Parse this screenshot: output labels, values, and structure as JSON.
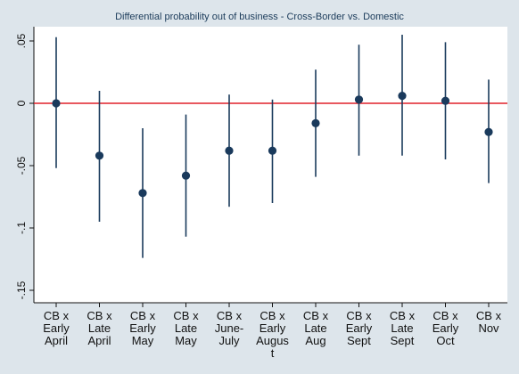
{
  "chart_data": {
    "type": "scatter",
    "subtype": "coefficient_plot_with_confidence_intervals",
    "title": "Differential probability out of business - Cross-Border vs. Domestic",
    "xlabel": "",
    "ylabel": "",
    "ylim": [
      -0.15,
      0.05
    ],
    "yticks": [
      {
        "value": 0.05,
        "label": ".05"
      },
      {
        "value": 0,
        "label": "0"
      },
      {
        "value": -0.05,
        "label": "-.05"
      },
      {
        "value": -0.1,
        "label": "-.1"
      },
      {
        "value": -0.15,
        "label": "-.15"
      }
    ],
    "categories": [
      [
        "CB x",
        "Early",
        "April"
      ],
      [
        "CB x",
        "Late",
        "April"
      ],
      [
        "CB x",
        "Early",
        "May"
      ],
      [
        "CB x",
        "Late",
        "May"
      ],
      [
        "CB x",
        "June-",
        "July"
      ],
      [
        "CB x",
        "Early",
        "Augus",
        "t"
      ],
      [
        "CB x",
        "Late",
        "Aug"
      ],
      [
        "CB x",
        "Early",
        "Sept"
      ],
      [
        "CB x",
        "Late",
        "Sept"
      ],
      [
        "CB x",
        "Early",
        "Oct"
      ],
      [
        "CB x",
        "Nov"
      ]
    ],
    "points": [
      {
        "estimate": 0.0,
        "ci_low": -0.052,
        "ci_high": 0.053
      },
      {
        "estimate": -0.042,
        "ci_low": -0.095,
        "ci_high": 0.01
      },
      {
        "estimate": -0.072,
        "ci_low": -0.124,
        "ci_high": -0.02
      },
      {
        "estimate": -0.058,
        "ci_low": -0.107,
        "ci_high": -0.009
      },
      {
        "estimate": -0.038,
        "ci_low": -0.083,
        "ci_high": 0.007
      },
      {
        "estimate": -0.038,
        "ci_low": -0.08,
        "ci_high": 0.003
      },
      {
        "estimate": -0.016,
        "ci_low": -0.059,
        "ci_high": 0.027
      },
      {
        "estimate": 0.003,
        "ci_low": -0.042,
        "ci_high": 0.047
      },
      {
        "estimate": 0.006,
        "ci_low": -0.042,
        "ci_high": 0.055
      },
      {
        "estimate": 0.002,
        "ci_low": -0.045,
        "ci_high": 0.049
      },
      {
        "estimate": -0.023,
        "ci_low": -0.064,
        "ci_high": 0.019
      }
    ],
    "reference_line": {
      "y": 0,
      "color": "#e0202a"
    },
    "colors": {
      "point": "#1a3a5c",
      "ci_line": "#1a3a5c",
      "axis": "#111111",
      "plot_bg": "#ffffff",
      "outer_bg": "#dde5eb"
    },
    "grid": false,
    "legend": "none"
  }
}
